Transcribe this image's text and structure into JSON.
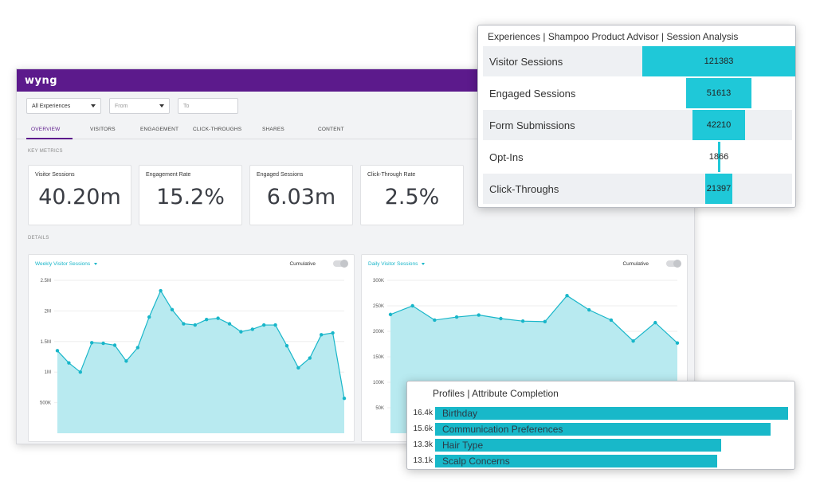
{
  "brand": {
    "logo": "wyng",
    "accent": "#5c1a8c",
    "chart_color": "#18b6c9"
  },
  "filters": {
    "experience": "All Experiences",
    "from_placeholder": "From",
    "to_placeholder": "To"
  },
  "tabs": [
    "OVERVIEW",
    "VISITORS",
    "ENGAGEMENT",
    "CLICK-THROUGHS",
    "SHARES",
    "CONTENT"
  ],
  "active_tab": "OVERVIEW",
  "sections": {
    "key_metrics": "KEY METRICS",
    "details": "DETAILS"
  },
  "metrics": [
    {
      "title": "Visitor Sessions",
      "value": "40.20m"
    },
    {
      "title": "Engagement Rate",
      "value": "15.2%"
    },
    {
      "title": "Engaged Sessions",
      "value": "6.03m"
    },
    {
      "title": "Click-Through Rate",
      "value": "2.5%"
    }
  ],
  "chart_data": [
    {
      "type": "area",
      "title": "Weekly Visitor Sessions",
      "toggle_label": "Cumulative",
      "ytick_labels": [
        "2.5M",
        "2M",
        "1.5M",
        "1M",
        "500K"
      ],
      "yticks": [
        2500000,
        2000000,
        1500000,
        1000000,
        500000
      ],
      "ylim": [
        0,
        2500000
      ],
      "values": [
        1350000,
        1150000,
        1000000,
        1480000,
        1470000,
        1440000,
        1180000,
        1400000,
        1900000,
        2330000,
        2020000,
        1790000,
        1770000,
        1860000,
        1880000,
        1790000,
        1660000,
        1700000,
        1770000,
        1770000,
        1430000,
        1070000,
        1230000,
        1610000,
        1640000,
        570000
      ]
    },
    {
      "type": "area",
      "title": "Daily Visitor Sessions",
      "toggle_label": "Cumulative",
      "ytick_labels": [
        "300K",
        "250K",
        "200K",
        "150K",
        "100K",
        "50K"
      ],
      "yticks": [
        300000,
        250000,
        200000,
        150000,
        100000,
        50000
      ],
      "ylim": [
        0,
        300000
      ],
      "values": [
        233000,
        250000,
        222000,
        228000,
        232000,
        225000,
        220000,
        219000,
        270000,
        242000,
        222000,
        181000,
        217000,
        177000
      ]
    }
  ],
  "session_analysis": {
    "title": "Experiences | Shampoo Product Advisor | Session Analysis",
    "max": 121383,
    "rows": [
      {
        "label": "Visitor Sessions",
        "value": 121383,
        "display": "121383"
      },
      {
        "label": "Engaged Sessions",
        "value": 51613,
        "display": "51613"
      },
      {
        "label": "Form Submissions",
        "value": 42210,
        "display": "42210"
      },
      {
        "label": "Opt-Ins",
        "value": 1866,
        "display": "1866"
      },
      {
        "label": "Click-Throughs",
        "value": 21397,
        "display": "21397"
      }
    ]
  },
  "profiles": {
    "title": "Profiles | Attribute Completion",
    "max": 16400,
    "rows": [
      {
        "display": "16.4k",
        "value": 16400,
        "label": "Birthday"
      },
      {
        "display": "15.6k",
        "value": 15600,
        "label": "Communication Preferences"
      },
      {
        "display": "13.3k",
        "value": 13300,
        "label": "Hair Type"
      },
      {
        "display": "13.1k",
        "value": 13100,
        "label": "Scalp Concerns"
      }
    ]
  }
}
